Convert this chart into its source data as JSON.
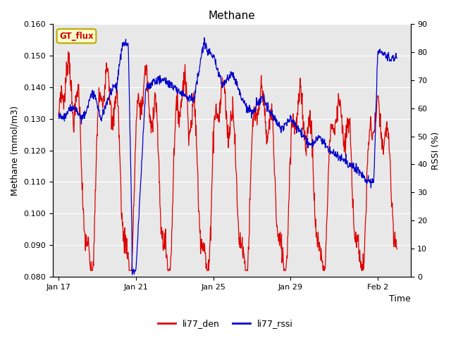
{
  "title": "Methane",
  "xlabel": "Time",
  "ylabel_left": "Methane (mmol/m3)",
  "ylabel_right": "RSSI (%)",
  "ylim_left": [
    0.08,
    0.16
  ],
  "ylim_right": [
    0,
    90
  ],
  "yticks_left": [
    0.08,
    0.09,
    0.1,
    0.11,
    0.12,
    0.13,
    0.14,
    0.15,
    0.16
  ],
  "yticks_right": [
    0,
    10,
    20,
    30,
    40,
    50,
    60,
    70,
    80,
    90
  ],
  "xtick_labels": [
    "Jan 17",
    "Jan 21",
    "Jan 25",
    "Jan 29",
    "Feb 2"
  ],
  "xtick_positions": [
    0,
    4,
    8,
    12,
    16.5
  ],
  "xlim": [
    -0.3,
    18.2
  ],
  "color_red": "#dd0000",
  "color_blue": "#0000cc",
  "background_color": "#e8e8e8",
  "gt_flux_bg": "#ffffcc",
  "gt_flux_border": "#bbaa00",
  "gt_flux_text_color": "#cc0000",
  "legend_red_label": "li77_den",
  "legend_blue_label": "li77_rssi",
  "line_width": 0.9,
  "figsize": [
    6.4,
    4.8
  ],
  "dpi": 100
}
